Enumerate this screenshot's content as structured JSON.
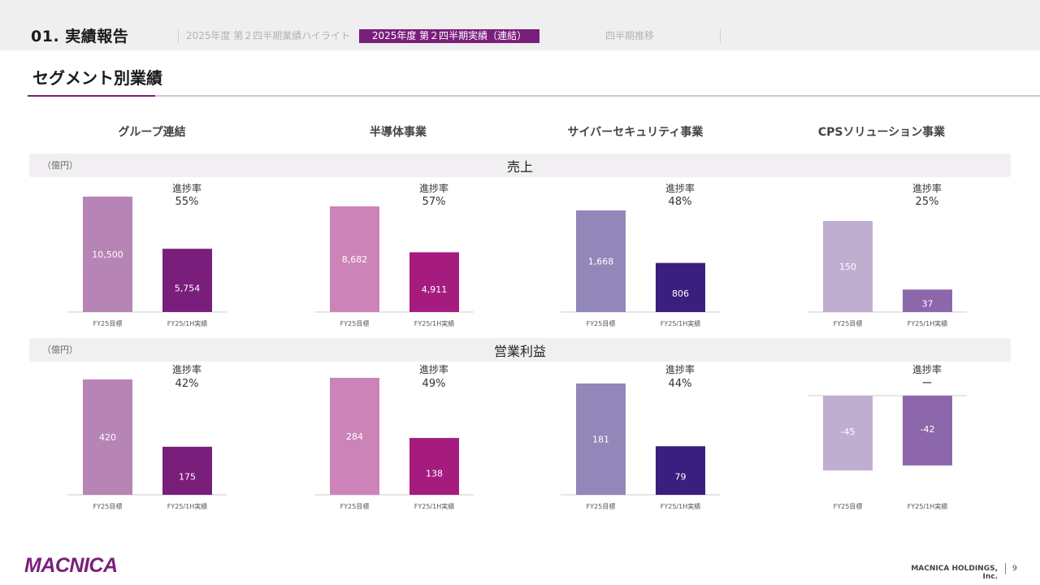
{
  "header": {
    "section_title": "01. 実績報告",
    "tabs": [
      {
        "label": "2025年度 第２四半期業績ハイライト",
        "active": false
      },
      {
        "label": "2025年度 第２四半期実績（連結）",
        "active": true
      },
      {
        "label": "四半期推移",
        "active": false
      }
    ]
  },
  "page_title": "セグメント別業績",
  "segments": [
    "グループ連結",
    "半導体事業",
    "サイバーセキュリティ事業",
    "CPSソリューション事業"
  ],
  "bands": [
    {
      "unit": "（億円）",
      "title": "売上"
    },
    {
      "unit": "（億円）",
      "title": "営業利益"
    }
  ],
  "progress_label": "進捗率",
  "chart_data": [
    {
      "type": "bar",
      "metric": "売上",
      "segment": "グループ連結",
      "categories": [
        "FY25目標",
        "FY25/1H実績"
      ],
      "values": [
        10500,
        5754
      ],
      "value_labels": [
        "10,500",
        "5,754"
      ],
      "progress": "55%"
    },
    {
      "type": "bar",
      "metric": "売上",
      "segment": "半導体事業",
      "categories": [
        "FY25目標",
        "FY25/1H実績"
      ],
      "values": [
        8682,
        4911
      ],
      "value_labels": [
        "8,682",
        "4,911"
      ],
      "progress": "57%"
    },
    {
      "type": "bar",
      "metric": "売上",
      "segment": "サイバーセキュリティ事業",
      "categories": [
        "FY25目標",
        "FY25/1H実績"
      ],
      "values": [
        1668,
        806
      ],
      "value_labels": [
        "1,668",
        "806"
      ],
      "progress": "48%"
    },
    {
      "type": "bar",
      "metric": "売上",
      "segment": "CPSソリューション事業",
      "categories": [
        "FY25目標",
        "FY25/1H実績"
      ],
      "values": [
        150,
        37
      ],
      "value_labels": [
        "150",
        "37"
      ],
      "progress": "25%"
    },
    {
      "type": "bar",
      "metric": "営業利益",
      "segment": "グループ連結",
      "categories": [
        "FY25目標",
        "FY25/1H実績"
      ],
      "values": [
        420,
        175
      ],
      "value_labels": [
        "420",
        "175"
      ],
      "progress": "42%"
    },
    {
      "type": "bar",
      "metric": "営業利益",
      "segment": "半導体事業",
      "categories": [
        "FY25目標",
        "FY25/1H実績"
      ],
      "values": [
        284,
        138
      ],
      "value_labels": [
        "284",
        "138"
      ],
      "progress": "49%"
    },
    {
      "type": "bar",
      "metric": "営業利益",
      "segment": "サイバーセキュリティ事業",
      "categories": [
        "FY25目標",
        "FY25/1H実績"
      ],
      "values": [
        181,
        79
      ],
      "value_labels": [
        "181",
        "79"
      ],
      "progress": "44%"
    },
    {
      "type": "bar",
      "metric": "営業利益",
      "segment": "CPSソリューション事業",
      "categories": [
        "FY25目標",
        "FY25/1H実績"
      ],
      "values": [
        -45,
        -42
      ],
      "value_labels": [
        "-45",
        "-42"
      ],
      "progress": "ー"
    }
  ],
  "colors": {
    "brand": "#7a1e7c",
    "group": [
      "#b784b6",
      "#7a1e7c"
    ],
    "semiconductor": [
      "#cc84b8",
      "#a51c7e"
    ],
    "cyber": [
      "#9287b8",
      "#3a1f7e"
    ],
    "cps": [
      "#c0aed0",
      "#8d67ac"
    ]
  },
  "footer": {
    "logo_text": "MACNICA",
    "company": "MACNICA HOLDINGS, Inc.",
    "page": "9"
  }
}
